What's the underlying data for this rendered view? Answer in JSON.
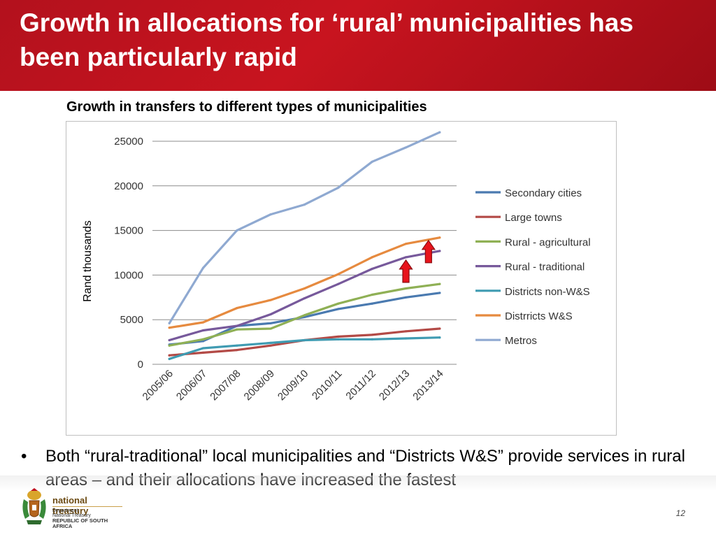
{
  "slide": {
    "title": "Growth in allocations for ‘rural’ municipalities has been particularly rapid",
    "chart_heading": "Growth in transfers to different types of municipalities",
    "bullet_symbol": "•",
    "bullet": "Both “rural-traditional” local municipalities and “Districts W&S” provide services in rural areas – and their allocations have increased the fastest",
    "page_number": "12"
  },
  "footer": {
    "brand": "national treasury",
    "dept_line1": "Department:",
    "dept_line2": "National Treasury",
    "dept_line3": "REPUBLIC OF SOUTH AFRICA"
  },
  "colors": {
    "header": "#c0131e",
    "arrow": "#e8141c"
  },
  "chart_data": {
    "type": "line",
    "title": "Growth in transfers to different types of municipalities",
    "xlabel": "",
    "ylabel": "Rand thousands",
    "ylim": [
      0,
      25000
    ],
    "yticks": [
      0,
      5000,
      10000,
      15000,
      20000,
      25000
    ],
    "grid": true,
    "legend_position": "right",
    "categories": [
      "2005/06",
      "2006/07",
      "2007/08",
      "2008/09",
      "2009/10",
      "2010/11",
      "2011/12",
      "2012/13",
      "2013/14"
    ],
    "series": [
      {
        "name": "Secondary cities",
        "color": "#4a7ab0",
        "values": [
          2200,
          2600,
          4300,
          4600,
          5300,
          6200,
          6800,
          7500,
          8000
        ]
      },
      {
        "name": "Large towns",
        "color": "#b34a46",
        "values": [
          1000,
          1300,
          1600,
          2100,
          2700,
          3100,
          3300,
          3700,
          4000
        ]
      },
      {
        "name": "Rural - agricultural",
        "color": "#8fb055",
        "values": [
          2100,
          2800,
          3900,
          4000,
          5500,
          6800,
          7800,
          8500,
          9000
        ]
      },
      {
        "name": "Rural - traditional",
        "color": "#77599b",
        "values": [
          2700,
          3800,
          4300,
          5600,
          7400,
          9000,
          10700,
          12000,
          12700
        ]
      },
      {
        "name": "Districts non-W&S",
        "color": "#3f9bb2",
        "values": [
          600,
          1800,
          2100,
          2400,
          2700,
          2800,
          2800,
          2900,
          3000
        ]
      },
      {
        "name": "Distrricts W&S",
        "color": "#e68a3f",
        "values": [
          4100,
          4700,
          6300,
          7200,
          8500,
          10100,
          12000,
          13500,
          14200
        ]
      },
      {
        "name": "Metros",
        "color": "#8fa9d1",
        "values": [
          4600,
          10800,
          15000,
          16800,
          17900,
          19800,
          22700,
          24300,
          26000
        ]
      }
    ],
    "annotations": [
      {
        "type": "up-arrow",
        "category": "2012/13",
        "series": "Rural - traditional"
      },
      {
        "type": "up-arrow",
        "category": "2013/14",
        "series": "Distrricts W&S"
      }
    ]
  }
}
